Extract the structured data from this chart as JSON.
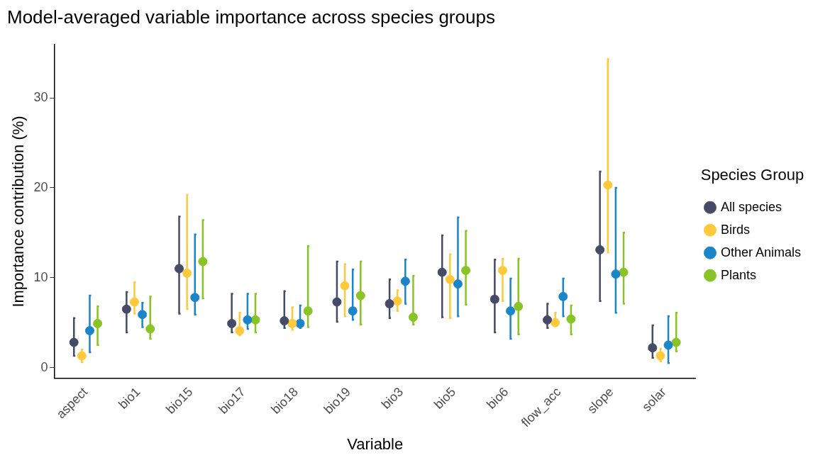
{
  "chart_data": {
    "type": "scatter",
    "title": "Model-averaged variable importance across species groups",
    "xlabel": "Variable",
    "ylabel": "Importance contribution (%)",
    "legend_title": "Species Group",
    "legend": "right",
    "grid": false,
    "marker": "circle",
    "categories": [
      "aspect",
      "bio1",
      "bio15",
      "bio17",
      "bio18",
      "bio19",
      "bio3",
      "bio5",
      "bio6",
      "flow_acc",
      "slope",
      "solar"
    ],
    "ylim": [
      -1.2,
      35.9
    ],
    "yticks": [
      0,
      10,
      20,
      30
    ],
    "series": [
      {
        "name": "All species",
        "color": "#454b66",
        "values": [
          2.8,
          6.5,
          11.0,
          4.9,
          5.2,
          7.3,
          7.1,
          10.6,
          7.6,
          5.3,
          13.1,
          2.2
        ],
        "errors": [
          [
            1.3,
            5.5
          ],
          [
            3.9,
            8.4
          ],
          [
            6.0,
            16.8
          ],
          [
            3.9,
            8.2
          ],
          [
            4.4,
            8.5
          ],
          [
            5.1,
            11.8
          ],
          [
            5.5,
            9.8
          ],
          [
            5.6,
            14.7
          ],
          [
            3.9,
            12.0
          ],
          [
            4.4,
            7.1
          ],
          [
            7.4,
            21.8
          ],
          [
            1.1,
            4.7
          ]
        ]
      },
      {
        "name": "Birds",
        "color": "#ffc93c",
        "values": [
          1.3,
          7.3,
          10.5,
          4.1,
          4.9,
          9.1,
          7.4,
          9.8,
          10.8,
          5.0,
          20.3,
          1.3
        ],
        "errors": [
          [
            0.6,
            2.0
          ],
          [
            6.0,
            9.5
          ],
          [
            6.5,
            19.2
          ],
          [
            3.6,
            6.1
          ],
          [
            4.2,
            6.7
          ],
          [
            5.7,
            11.5
          ],
          [
            6.3,
            8.6
          ],
          [
            5.5,
            12.6
          ],
          [
            7.4,
            12.1
          ],
          [
            4.6,
            6.1
          ],
          [
            12.8,
            34.3
          ],
          [
            0.7,
            2.1
          ]
        ]
      },
      {
        "name": "Other Animals",
        "color": "#1a85c8",
        "values": [
          4.1,
          5.9,
          7.8,
          5.3,
          4.9,
          6.3,
          9.6,
          9.3,
          6.3,
          7.9,
          10.4,
          2.5
        ],
        "errors": [
          [
            1.7,
            8.0
          ],
          [
            4.5,
            7.2
          ],
          [
            5.9,
            14.8
          ],
          [
            4.3,
            8.2
          ],
          [
            4.4,
            6.9
          ],
          [
            5.3,
            10.9
          ],
          [
            7.1,
            12.0
          ],
          [
            5.7,
            16.7
          ],
          [
            3.2,
            9.9
          ],
          [
            5.7,
            9.9
          ],
          [
            6.1,
            20.0
          ],
          [
            0.5,
            5.7
          ]
        ]
      },
      {
        "name": "Plants",
        "color": "#88c425",
        "values": [
          4.9,
          4.3,
          11.8,
          5.3,
          6.3,
          8.0,
          5.6,
          10.8,
          6.8,
          5.4,
          10.6,
          2.8
        ],
        "errors": [
          [
            2.5,
            6.8
          ],
          [
            3.2,
            7.9
          ],
          [
            7.7,
            16.4
          ],
          [
            3.9,
            8.2
          ],
          [
            4.5,
            13.5
          ],
          [
            4.8,
            11.8
          ],
          [
            4.8,
            10.2
          ],
          [
            7.0,
            15.2
          ],
          [
            3.7,
            12.1
          ],
          [
            3.7,
            6.9
          ],
          [
            7.1,
            15.0
          ],
          [
            1.8,
            6.1
          ]
        ]
      }
    ]
  }
}
